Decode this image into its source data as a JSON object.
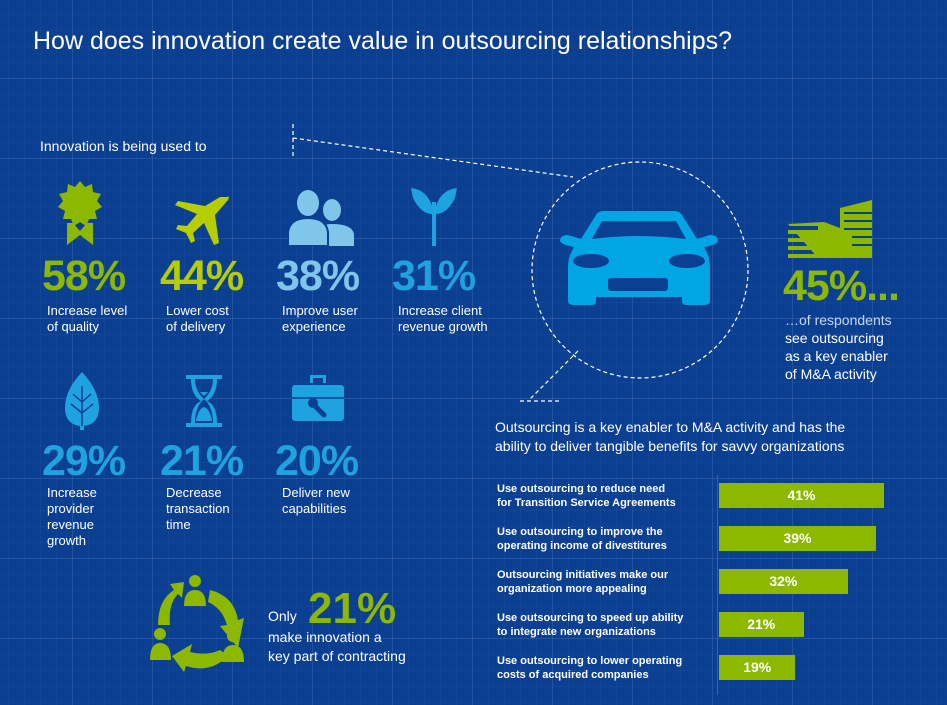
{
  "title": "How does innovation create value in outsourcing relationships?",
  "intro": "Innovation is being used to",
  "stats": [
    {
      "pct": "58%",
      "label1": "Increase level",
      "label2": "of quality",
      "icon": "award-ribbon-icon",
      "color": "#8cb800"
    },
    {
      "pct": "44%",
      "label1": "Lower cost",
      "label2": "of delivery",
      "icon": "airplane-icon",
      "color": "#b6cd00"
    },
    {
      "pct": "38%",
      "label1": "Improve user",
      "label2": "experience",
      "icon": "users-icon",
      "color": "#7fc6ea"
    },
    {
      "pct": "31%",
      "label1": "Increase client",
      "label2": "revenue growth",
      "icon": "sprout-icon",
      "color": "#1ea3e0"
    },
    {
      "pct": "29%",
      "label1": "Increase",
      "label2": "provider",
      "label3": "revenue",
      "label4": "growth",
      "icon": "leaf-icon",
      "color": "#1ea3e0"
    },
    {
      "pct": "21%",
      "label1": "Decrease",
      "label2": "transaction",
      "label3": "time",
      "icon": "hourglass-icon",
      "color": "#1ea3e0"
    },
    {
      "pct": "20%",
      "label1": "Deliver new",
      "label2": "capabilities",
      "icon": "toolbox-icon",
      "color": "#1ea3e0"
    }
  ],
  "only": {
    "prefix": "Only",
    "pct": "21%",
    "line1": "make innovation a",
    "line2": "key part of contracting"
  },
  "ma": {
    "pct": "45%...",
    "line1": "…of respondents",
    "line2": "see outsourcing",
    "line3": "as a key enabler",
    "line4": "of M&A activity"
  },
  "paragraph": {
    "line1": "Outsourcing is a key enabler to M&A activity and has the",
    "line2": "ability to deliver tangible benefits for savvy organizations"
  },
  "chart_data": {
    "type": "bar",
    "orientation": "horizontal",
    "categories": [
      [
        "Use outsourcing to reduce need",
        "for Transition Service Agreements"
      ],
      [
        "Use outsourcing to improve the",
        "operating income of divestitures"
      ],
      [
        "Outsourcing initiatives make our",
        "organization more appealing"
      ],
      [
        "Use outsourcing to speed up ability",
        "to integrate new organizations"
      ],
      [
        "Use outsourcing to lower operating",
        "costs of acquired companies"
      ]
    ],
    "values": [
      41,
      39,
      32,
      21,
      19
    ],
    "labels": [
      "41%",
      "39%",
      "32%",
      "21%",
      "19%"
    ],
    "unit": "%",
    "xlim": [
      0,
      45
    ],
    "bar_color": "#8cb800"
  },
  "colors": {
    "background": "#0b3f91",
    "green": "#8cb800",
    "lime": "#b6cd00",
    "light_blue": "#7fc6ea",
    "blue": "#1ea3e0"
  }
}
